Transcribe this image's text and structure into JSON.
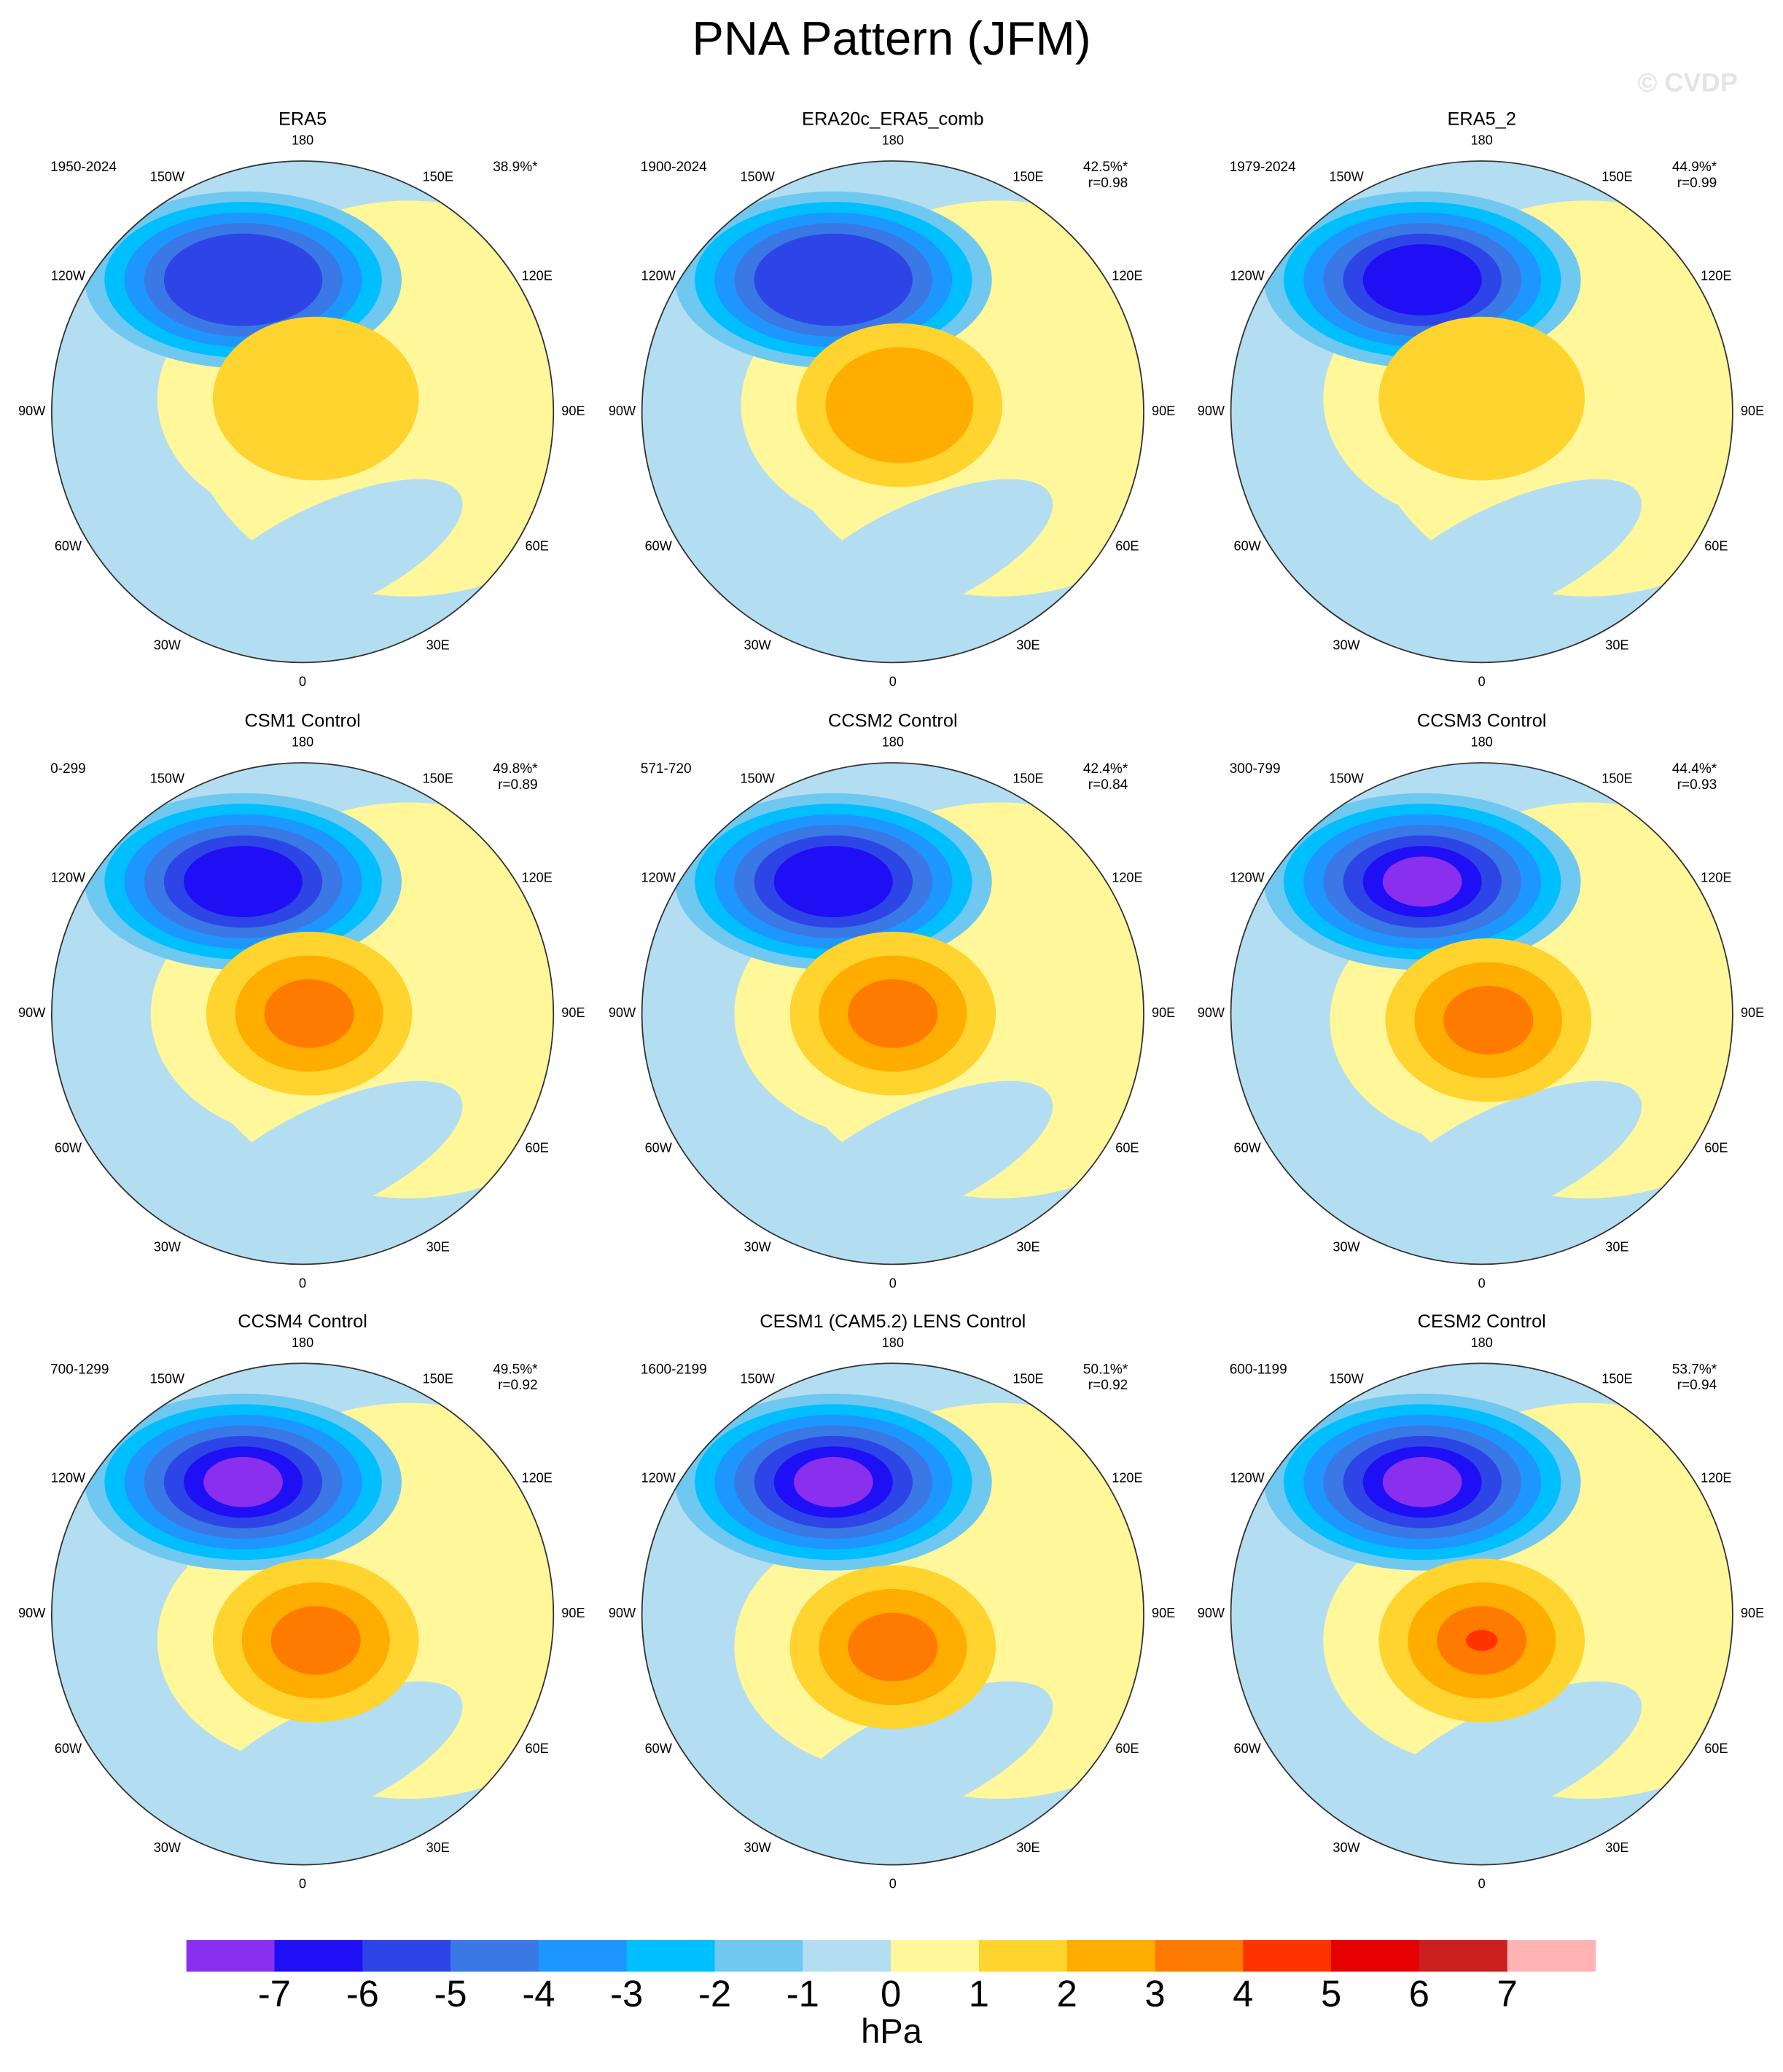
{
  "header": {
    "title": "PNA Pattern (JFM)",
    "watermark": "© CVDP"
  },
  "longitude_labels": [
    "180",
    "150E",
    "120E",
    "90E",
    "60E",
    "30E",
    "0",
    "30W",
    "60W",
    "90W",
    "120W",
    "150W"
  ],
  "panels": [
    {
      "title": "ERA5",
      "period": "1950-2024",
      "pct": "38.9%*"
    },
    {
      "title": "ERA20c_ERA5_comb",
      "period": "1900-2024",
      "pct": "42.5%*",
      "r": "r=0.98"
    },
    {
      "title": "ERA5_2",
      "period": "1979-2024",
      "pct": "44.9%*",
      "r": "r=0.99"
    },
    {
      "title": "CSM1 Control",
      "period": "0-299",
      "pct": "49.8%*",
      "r": "r=0.89"
    },
    {
      "title": "CCSM2 Control",
      "period": "571-720",
      "pct": "42.4%*",
      "r": "r=0.84"
    },
    {
      "title": "CCSM3 Control",
      "period": "300-799",
      "pct": "44.4%*",
      "r": "r=0.93"
    },
    {
      "title": "CCSM4 Control",
      "period": "700-1299",
      "pct": "49.5%*",
      "r": "r=0.92"
    },
    {
      "title": "CESM1 (CAM5.2) LENS Control",
      "period": "1600-2199",
      "pct": "50.1%*",
      "r": "r=0.92"
    },
    {
      "title": "CESM2 Control",
      "period": "600-1199",
      "pct": "53.7%*",
      "r": "r=0.94"
    }
  ],
  "colorbar": {
    "colors": [
      "#8b2fee",
      "#1f0ff5",
      "#2d45e6",
      "#3a78e6",
      "#1e96ff",
      "#00bfff",
      "#6fc8f0",
      "#b3def2",
      "#fff79a",
      "#ffd42e",
      "#ffad00",
      "#ff7b00",
      "#ff3300",
      "#e60000",
      "#cc1f1f",
      "#ffb3b3"
    ],
    "ticks": [
      -7,
      -6,
      -5,
      -4,
      -3,
      -2,
      -1,
      0,
      1,
      2,
      3,
      4,
      5,
      6,
      7
    ],
    "label": "hPa"
  }
}
